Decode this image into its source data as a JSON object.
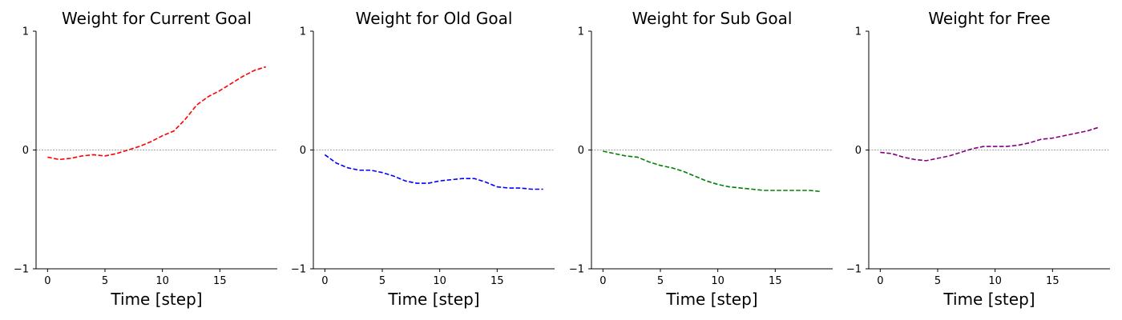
{
  "chart_data": [
    {
      "type": "line",
      "title": "Weight for Current Goal",
      "xlabel": "Time [step]",
      "ylabel": "",
      "xlim": [
        -1,
        20
      ],
      "ylim": [
        -1,
        1
      ],
      "xticks": [
        0,
        5,
        10,
        15
      ],
      "yticks": [
        -1,
        0,
        1
      ],
      "zero_line": true,
      "grid": false,
      "line_style": "dashed",
      "color": "#ff0000",
      "series": [
        {
          "x": [
            0,
            1,
            2,
            3,
            4,
            5,
            6,
            7,
            8,
            9,
            10,
            11,
            12,
            13,
            14,
            15,
            16,
            17,
            18,
            19
          ],
          "values": [
            -0.06,
            -0.08,
            -0.07,
            -0.05,
            -0.04,
            -0.05,
            -0.03,
            0.0,
            0.03,
            0.07,
            0.12,
            0.16,
            0.26,
            0.38,
            0.45,
            0.5,
            0.56,
            0.62,
            0.67,
            0.7
          ]
        }
      ]
    },
    {
      "type": "line",
      "title": "Weight for Old Goal",
      "xlabel": "Time [step]",
      "ylabel": "",
      "xlim": [
        -1,
        20
      ],
      "ylim": [
        -1,
        1
      ],
      "xticks": [
        0,
        5,
        10,
        15
      ],
      "yticks": [
        -1,
        0,
        1
      ],
      "zero_line": true,
      "grid": false,
      "line_style": "dashed",
      "color": "#0000ff",
      "series": [
        {
          "x": [
            0,
            1,
            2,
            3,
            4,
            5,
            6,
            7,
            8,
            9,
            10,
            11,
            12,
            13,
            14,
            15,
            16,
            17,
            18,
            19
          ],
          "values": [
            -0.04,
            -0.11,
            -0.15,
            -0.17,
            -0.17,
            -0.19,
            -0.22,
            -0.26,
            -0.28,
            -0.28,
            -0.26,
            -0.25,
            -0.24,
            -0.24,
            -0.27,
            -0.31,
            -0.32,
            -0.32,
            -0.33,
            -0.33
          ]
        }
      ]
    },
    {
      "type": "line",
      "title": "Weight for Sub Goal",
      "xlabel": "Time [step]",
      "ylabel": "",
      "xlim": [
        -1,
        20
      ],
      "ylim": [
        -1,
        1
      ],
      "xticks": [
        0,
        5,
        10,
        15
      ],
      "yticks": [
        -1,
        0,
        1
      ],
      "zero_line": true,
      "grid": false,
      "line_style": "dashed",
      "color": "#008000",
      "series": [
        {
          "x": [
            0,
            1,
            2,
            3,
            4,
            5,
            6,
            7,
            8,
            9,
            10,
            11,
            12,
            13,
            14,
            15,
            16,
            17,
            18,
            19
          ],
          "values": [
            -0.01,
            -0.03,
            -0.05,
            -0.06,
            -0.1,
            -0.13,
            -0.15,
            -0.18,
            -0.22,
            -0.26,
            -0.29,
            -0.31,
            -0.32,
            -0.33,
            -0.34,
            -0.34,
            -0.34,
            -0.34,
            -0.34,
            -0.35
          ]
        }
      ]
    },
    {
      "type": "line",
      "title": "Weight for Free",
      "xlabel": "Time [step]",
      "ylabel": "",
      "xlim": [
        -1,
        20
      ],
      "ylim": [
        -1,
        1
      ],
      "xticks": [
        0,
        5,
        10,
        15
      ],
      "yticks": [
        -1,
        0,
        1
      ],
      "zero_line": true,
      "grid": false,
      "line_style": "dashed",
      "color": "#800080",
      "series": [
        {
          "x": [
            0,
            1,
            2,
            3,
            4,
            5,
            6,
            7,
            8,
            9,
            10,
            11,
            12,
            13,
            14,
            15,
            16,
            17,
            18,
            19
          ],
          "values": [
            -0.02,
            -0.03,
            -0.06,
            -0.08,
            -0.09,
            -0.07,
            -0.05,
            -0.02,
            0.01,
            0.03,
            0.03,
            0.03,
            0.04,
            0.06,
            0.09,
            0.1,
            0.12,
            0.14,
            0.16,
            0.19
          ]
        }
      ]
    }
  ]
}
